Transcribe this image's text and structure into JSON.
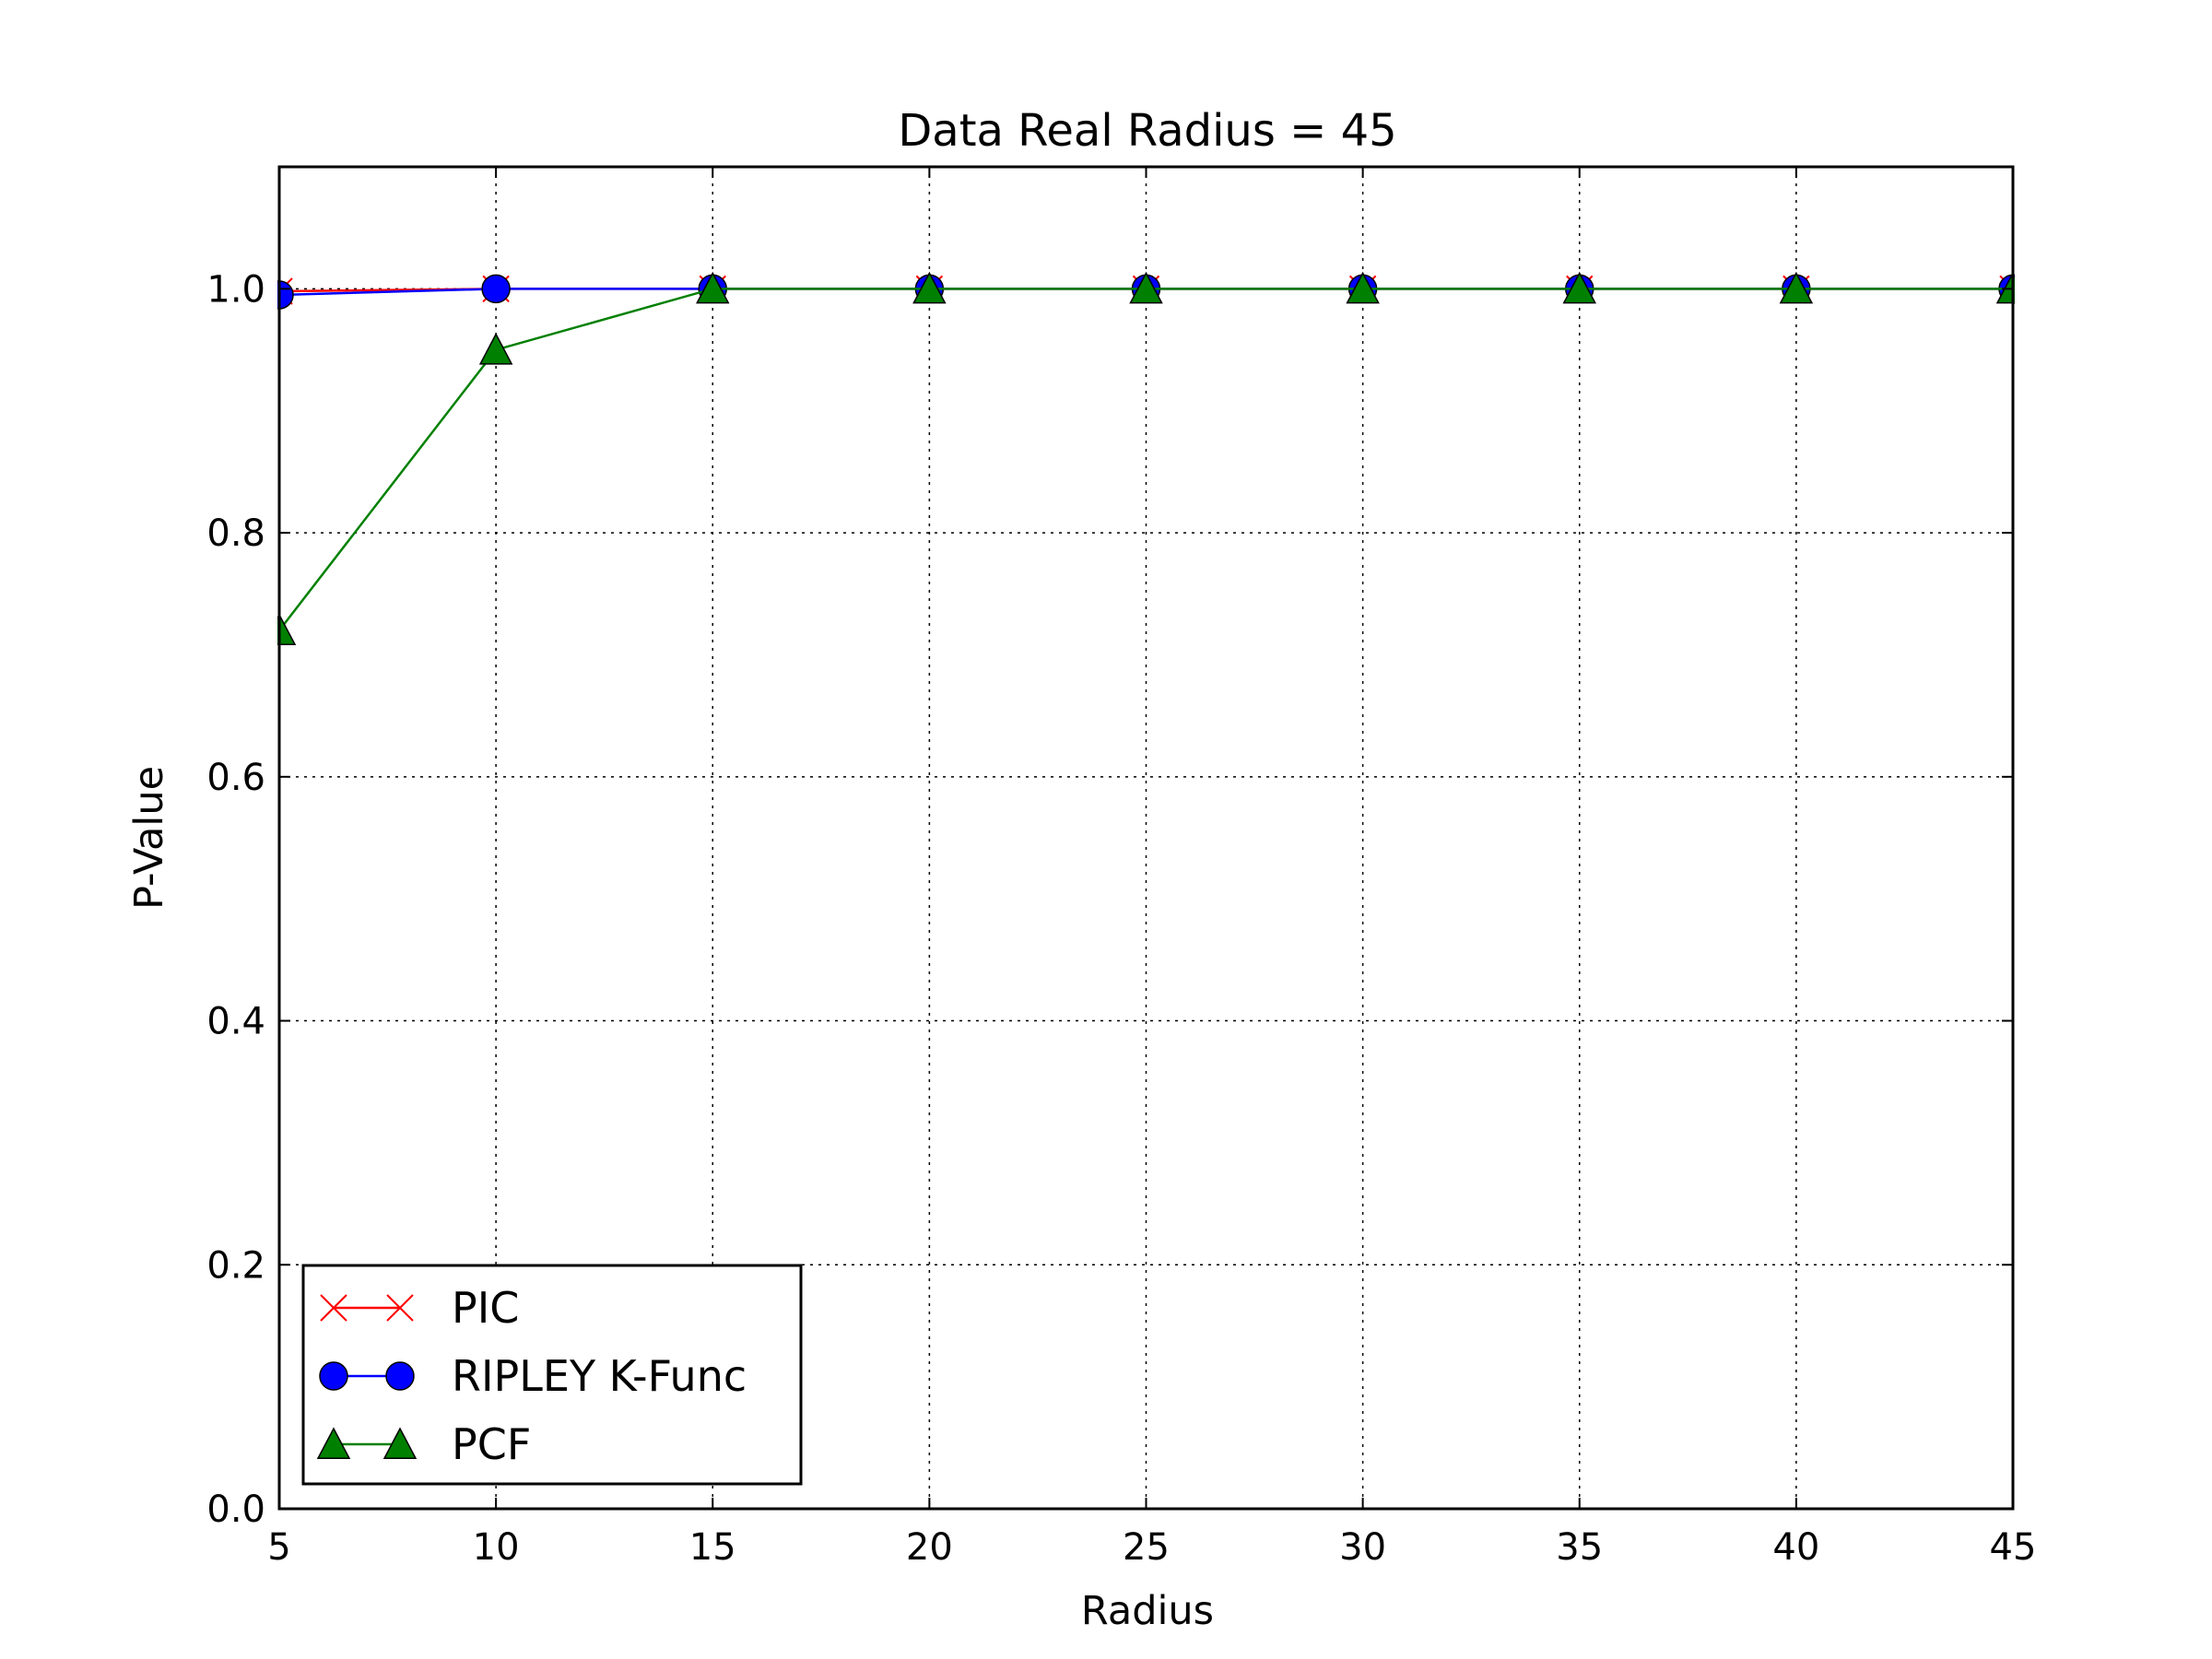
{
  "chart_data": {
    "type": "line",
    "title": "Data Real Radius = 45",
    "xlabel": "Radius",
    "ylabel": "P-Value",
    "xlim": [
      5,
      45
    ],
    "ylim": [
      0.0,
      1.1
    ],
    "xticks": [
      5,
      10,
      15,
      20,
      25,
      30,
      35,
      40,
      45
    ],
    "xtick_labels": [
      "5",
      "10",
      "15",
      "20",
      "25",
      "30",
      "35",
      "40",
      "45"
    ],
    "yticks": [
      0.0,
      0.2,
      0.4,
      0.6,
      0.8,
      1.0
    ],
    "ytick_labels": [
      "0.0",
      "0.2",
      "0.4",
      "0.6",
      "0.8",
      "1.0"
    ],
    "grid": true,
    "legend_position": "lower-left",
    "x": [
      5,
      10,
      15,
      20,
      25,
      30,
      35,
      40,
      45
    ],
    "series": [
      {
        "name": "PIC",
        "color": "#ff0000",
        "marker": "x",
        "values": [
          0.998,
          1.0,
          1.0,
          1.0,
          1.0,
          1.0,
          1.0,
          1.0,
          1.0
        ]
      },
      {
        "name": "RIPLEY K-Func",
        "color": "#0000ff",
        "marker": "circle",
        "values": [
          0.995,
          1.0,
          1.0,
          1.0,
          1.0,
          1.0,
          1.0,
          1.0,
          1.0
        ]
      },
      {
        "name": "PCF",
        "color": "#008000",
        "marker": "triangle",
        "values": [
          0.72,
          0.95,
          1.0,
          1.0,
          1.0,
          1.0,
          1.0,
          1.0,
          1.0
        ]
      }
    ]
  }
}
